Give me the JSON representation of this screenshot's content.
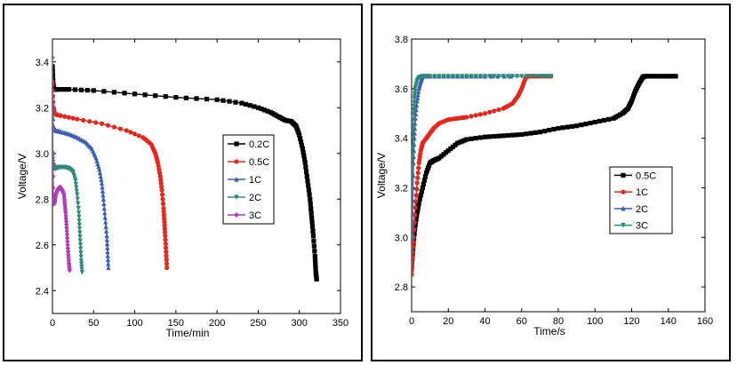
{
  "chart_data": [
    {
      "type": "line",
      "title": "",
      "xlabel": "Time/min",
      "ylabel": "Voltage/V",
      "xlim": [
        0,
        350
      ],
      "ylim": [
        2.3,
        3.5
      ],
      "xticks": [
        0,
        50,
        100,
        150,
        200,
        250,
        300,
        350
      ],
      "yticks": [
        2.4,
        2.6,
        2.8,
        3.0,
        3.2,
        3.4
      ],
      "legend_position": "right-middle",
      "series": [
        {
          "name": "0.2C",
          "color": "#000000",
          "marker": "square",
          "x": [
            0,
            1,
            2,
            5,
            20,
            50,
            100,
            150,
            200,
            230,
            250,
            265,
            275,
            283,
            290,
            296,
            300,
            304,
            307,
            310,
            313,
            315,
            317,
            319,
            320,
            321
          ],
          "y": [
            3.38,
            3.3,
            3.28,
            3.28,
            3.28,
            3.275,
            3.26,
            3.245,
            3.235,
            3.22,
            3.2,
            3.18,
            3.16,
            3.145,
            3.14,
            3.12,
            3.08,
            3.02,
            2.96,
            2.88,
            2.8,
            2.72,
            2.64,
            2.55,
            2.48,
            2.45
          ]
        },
        {
          "name": "0.5C",
          "color": "#e8261b",
          "marker": "circle",
          "x": [
            0,
            1,
            2,
            4,
            10,
            30,
            60,
            90,
            110,
            120,
            125,
            128,
            131,
            133,
            135,
            136,
            137,
            138,
            139
          ],
          "y": [
            3.3,
            3.2,
            3.18,
            3.17,
            3.165,
            3.15,
            3.13,
            3.1,
            3.07,
            3.04,
            3.0,
            2.96,
            2.9,
            2.84,
            2.76,
            2.7,
            2.64,
            2.57,
            2.5
          ]
        },
        {
          "name": "1C",
          "color": "#3a5fb4",
          "marker": "triangle-up",
          "x": [
            0,
            1,
            2,
            4,
            10,
            20,
            30,
            40,
            48,
            53,
            57,
            60,
            62,
            64,
            66,
            67,
            68
          ],
          "y": [
            3.25,
            3.12,
            3.11,
            3.1,
            3.095,
            3.085,
            3.07,
            3.05,
            3.02,
            2.98,
            2.93,
            2.87,
            2.8,
            2.72,
            2.64,
            2.57,
            2.5
          ]
        },
        {
          "name": "2C",
          "color": "#2c8a7c",
          "marker": "triangle-down",
          "x": [
            0,
            1,
            2,
            4,
            8,
            15,
            20,
            25,
            28,
            30,
            32,
            33,
            34,
            35,
            36
          ],
          "y": [
            3.0,
            2.95,
            2.935,
            2.935,
            2.94,
            2.94,
            2.935,
            2.92,
            2.88,
            2.82,
            2.74,
            2.67,
            2.6,
            2.53,
            2.48
          ]
        },
        {
          "name": "3C",
          "color": "#b13ab8",
          "marker": "diamond",
          "x": [
            0,
            0.5,
            1,
            2,
            3,
            4,
            6,
            8,
            10,
            12,
            14,
            15,
            16,
            17,
            18,
            19,
            20,
            21
          ],
          "y": [
            3.42,
            3.0,
            2.8,
            2.78,
            2.79,
            2.82,
            2.84,
            2.85,
            2.85,
            2.84,
            2.82,
            2.78,
            2.74,
            2.69,
            2.63,
            2.57,
            2.52,
            2.49
          ]
        }
      ]
    },
    {
      "type": "line",
      "title": "",
      "xlabel": "Time/s",
      "ylabel": "Voltage/V",
      "xlim": [
        0,
        160
      ],
      "ylim": [
        2.7,
        3.8
      ],
      "xticks": [
        0,
        20,
        40,
        60,
        80,
        100,
        120,
        140,
        160
      ],
      "yticks": [
        2.8,
        3.0,
        3.2,
        3.4,
        3.6,
        3.8
      ],
      "legend_position": "right-middle",
      "series": [
        {
          "name": "0.5C",
          "color": "#000000",
          "marker": "square",
          "x": [
            0,
            0.5,
            1,
            2,
            3,
            4,
            6,
            8,
            10,
            12,
            15,
            20,
            25,
            30,
            40,
            50,
            60,
            70,
            80,
            90,
            100,
            110,
            115,
            118,
            120,
            122,
            124,
            126,
            127,
            130,
            135,
            140,
            144
          ],
          "y": [
            2.88,
            2.93,
            2.98,
            3.05,
            3.1,
            3.14,
            3.2,
            3.26,
            3.3,
            3.31,
            3.32,
            3.35,
            3.38,
            3.395,
            3.405,
            3.41,
            3.415,
            3.425,
            3.44,
            3.45,
            3.465,
            3.48,
            3.5,
            3.52,
            3.55,
            3.59,
            3.62,
            3.645,
            3.65,
            3.65,
            3.65,
            3.65,
            3.65
          ]
        },
        {
          "name": "1C",
          "color": "#e8261b",
          "marker": "circle",
          "x": [
            0,
            0.5,
            1,
            2,
            3,
            4,
            5,
            6,
            8,
            10,
            12,
            15,
            20,
            25,
            30,
            40,
            50,
            55,
            58,
            60,
            62,
            63,
            65,
            70,
            76
          ],
          "y": [
            2.85,
            2.92,
            3.0,
            3.12,
            3.22,
            3.3,
            3.35,
            3.38,
            3.4,
            3.42,
            3.44,
            3.46,
            3.475,
            3.48,
            3.485,
            3.5,
            3.52,
            3.54,
            3.57,
            3.6,
            3.64,
            3.65,
            3.65,
            3.65,
            3.65
          ]
        },
        {
          "name": "2C",
          "color": "#3a5fb4",
          "marker": "triangle-up",
          "x": [
            0,
            0.5,
            1,
            1.5,
            2,
            3,
            4,
            5,
            6,
            10,
            20,
            30,
            40,
            54
          ],
          "y": [
            2.9,
            3.1,
            3.3,
            3.4,
            3.48,
            3.55,
            3.6,
            3.63,
            3.65,
            3.65,
            3.65,
            3.65,
            3.65,
            3.65
          ]
        },
        {
          "name": "3C",
          "color": "#2c8a7c",
          "marker": "triangle-down",
          "x": [
            0,
            0.3,
            0.6,
            1,
            1.5,
            2,
            3,
            4,
            6,
            10,
            20,
            30,
            40,
            50,
            60,
            70,
            76
          ],
          "y": [
            3.0,
            3.25,
            3.4,
            3.5,
            3.56,
            3.6,
            3.63,
            3.645,
            3.65,
            3.65,
            3.65,
            3.65,
            3.65,
            3.65,
            3.65,
            3.65,
            3.65
          ]
        }
      ]
    }
  ]
}
